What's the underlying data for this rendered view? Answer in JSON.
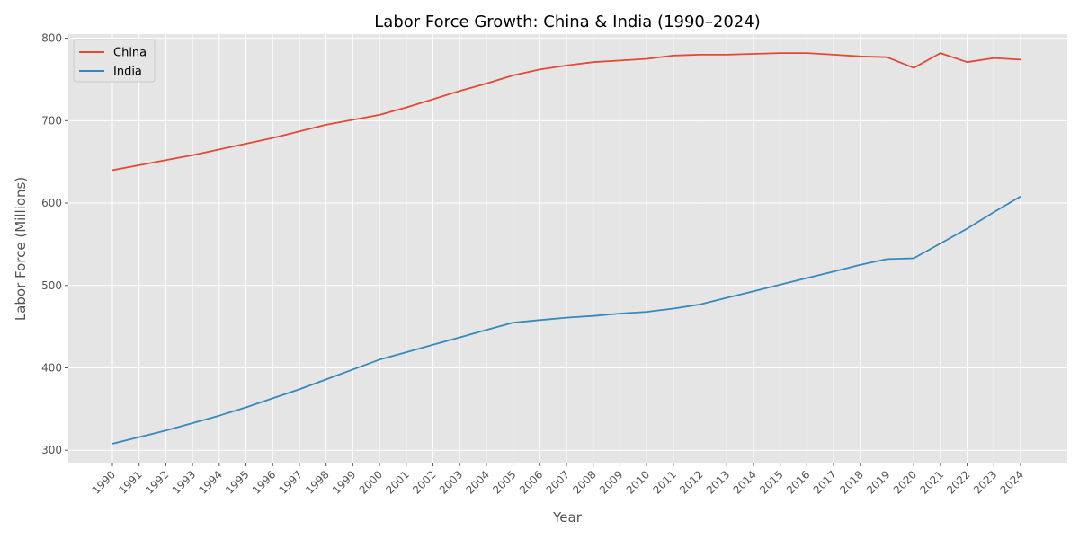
{
  "chart_data": {
    "type": "line",
    "title": "Labor Force Growth: China & India (1990–2024)",
    "xlabel": "Year",
    "ylabel": "Labor Force (Millions)",
    "x": [
      1990,
      1991,
      1992,
      1993,
      1994,
      1995,
      1996,
      1997,
      1998,
      1999,
      2000,
      2001,
      2002,
      2003,
      2004,
      2005,
      2006,
      2007,
      2008,
      2009,
      2010,
      2011,
      2012,
      2013,
      2014,
      2015,
      2016,
      2017,
      2018,
      2019,
      2020,
      2021,
      2022,
      2023,
      2024
    ],
    "ylim": [
      285,
      805
    ],
    "yticks": [
      300,
      400,
      500,
      600,
      700,
      800
    ],
    "grid": true,
    "legend_position": "top-left",
    "series": [
      {
        "name": "China",
        "color": "#E24A33",
        "values": [
          640,
          646,
          652,
          658,
          665,
          672,
          679,
          687,
          695,
          701,
          707,
          716,
          726,
          736,
          745,
          755,
          762,
          767,
          771,
          773,
          775,
          779,
          780,
          780,
          781,
          782,
          782,
          780,
          778,
          777,
          764,
          782,
          771,
          776,
          774
        ]
      },
      {
        "name": "India",
        "color": "#348ABD",
        "values": [
          308,
          316,
          324,
          333,
          342,
          352,
          363,
          374,
          386,
          398,
          410,
          419,
          428,
          437,
          446,
          455,
          458,
          461,
          463,
          466,
          468,
          472,
          477,
          485,
          493,
          501,
          509,
          517,
          525,
          532,
          533,
          551,
          569,
          589,
          608
        ]
      }
    ]
  }
}
